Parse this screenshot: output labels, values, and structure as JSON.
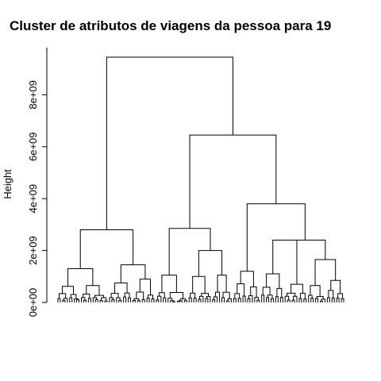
{
  "chart_data": {
    "type": "dendrogram",
    "title": "Cluster de atributos de viagens da pessoa para 19",
    "ylabel": "Height",
    "xlabel": "",
    "ylim": [
      0,
      9500000000
    ],
    "y_ticks": [
      {
        "value": 0,
        "label": "0e+00"
      },
      {
        "value": 2000000000,
        "label": "2e+09"
      },
      {
        "value": 4000000000,
        "label": "4e+09"
      },
      {
        "value": 6000000000,
        "label": "6e+09"
      },
      {
        "value": 8000000000,
        "label": "8e+09"
      }
    ],
    "grid": false,
    "leaf_count": 121,
    "merge_heights": {
      "root": 9450000000,
      "right_cluster": 6450000000,
      "left_cluster": 2800000000,
      "middle_left": 2850000000,
      "middle_right": 3800000000,
      "right_a": 2400000000,
      "right_b": 1650000000,
      "middle_sub": 2000000000,
      "left_sub_a": 1300000000,
      "left_sub_b": 1450000000
    }
  }
}
